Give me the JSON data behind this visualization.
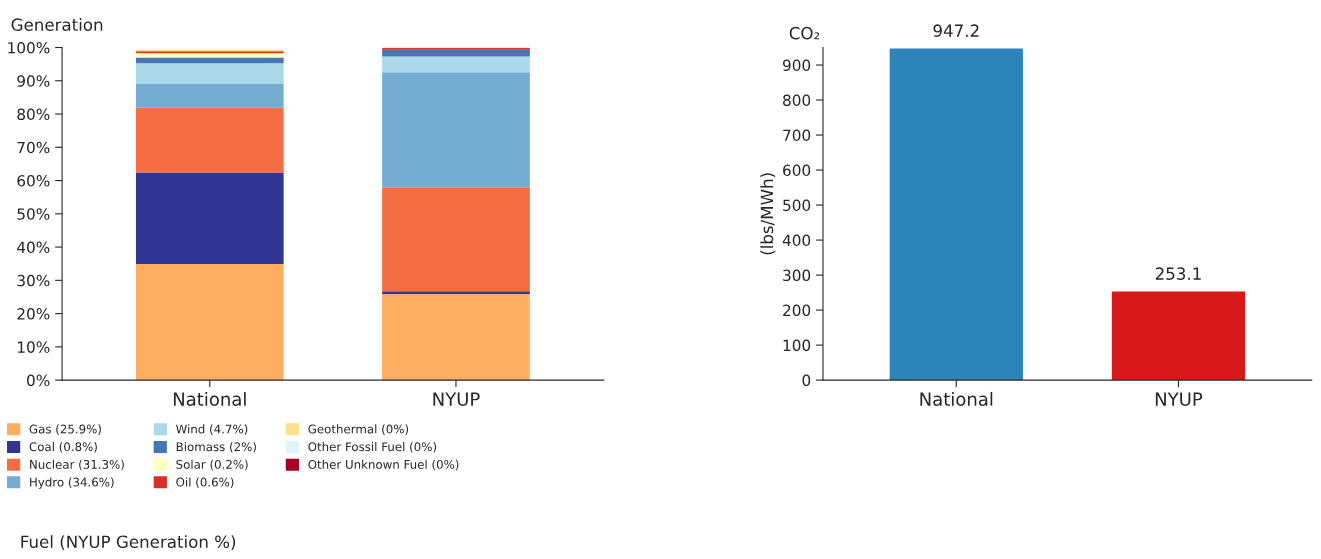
{
  "chart_data": [
    {
      "type": "bar",
      "stacked": true,
      "ylabel": "Generation",
      "legend_title": "Fuel (NYUP Generation %)",
      "legend": "bottom",
      "grid": false,
      "categories": [
        "National",
        "NYUP"
      ],
      "ylim": [
        0,
        100
      ],
      "yticks": [
        {
          "value": 0,
          "label": "0%"
        },
        {
          "value": 10,
          "label": "10%"
        },
        {
          "value": 20,
          "label": "20%"
        },
        {
          "value": 30,
          "label": "30%"
        },
        {
          "value": 40,
          "label": "40%"
        },
        {
          "value": 50,
          "label": "50%"
        },
        {
          "value": 60,
          "label": "60%"
        },
        {
          "value": 70,
          "label": "70%"
        },
        {
          "value": 80,
          "label": "80%"
        },
        {
          "value": 90,
          "label": "90%"
        },
        {
          "value": 100,
          "label": "100%"
        }
      ],
      "series": [
        {
          "name": "Gas (25.9%)",
          "color": "#fdae61",
          "values": [
            34.9,
            25.9
          ]
        },
        {
          "name": "Coal (0.8%)",
          "color": "#313695",
          "values": [
            27.5,
            0.8
          ]
        },
        {
          "name": "Nuclear (31.3%)",
          "color": "#f46d43",
          "values": [
            19.5,
            31.3
          ]
        },
        {
          "name": "Hydro (34.6%)",
          "color": "#74add1",
          "values": [
            7.1,
            34.6
          ]
        },
        {
          "name": "Wind (4.7%)",
          "color": "#abd9e9",
          "values": [
            6.3,
            4.7
          ]
        },
        {
          "name": "Biomass (2%)",
          "color": "#4575b4",
          "values": [
            1.7,
            2
          ]
        },
        {
          "name": "Solar (0.2%)",
          "color": "#ffffbf",
          "values": [
            1.3,
            null
          ]
        },
        {
          "name": "Oil (0.6%)",
          "color": "#d73027",
          "values": [
            0.6,
            0.6
          ]
        },
        {
          "name": "Geothermal (0%)",
          "color": "#fee090",
          "values": [
            0.4,
            0
          ]
        },
        {
          "name": "Other Fossil Fuel (0%)",
          "color": "#e0f3f8",
          "values": [
            null,
            0
          ]
        },
        {
          "name": "Other Unknown Fuel (0%)",
          "color": "#a50026",
          "values": [
            null,
            0
          ]
        }
      ]
    },
    {
      "type": "bar",
      "title": "CO₂",
      "ylabel": "(lbs/MWh)",
      "data_labels": true,
      "legend": false,
      "grid": false,
      "categories": [
        "National",
        "NYUP"
      ],
      "ylim": [
        0,
        950
      ],
      "yticks": [
        0,
        100,
        200,
        300,
        400,
        500,
        600,
        700,
        800,
        900
      ],
      "colors": [
        "#2c84ba",
        "#d7191c"
      ],
      "values": [
        947.2,
        253.1
      ]
    }
  ]
}
